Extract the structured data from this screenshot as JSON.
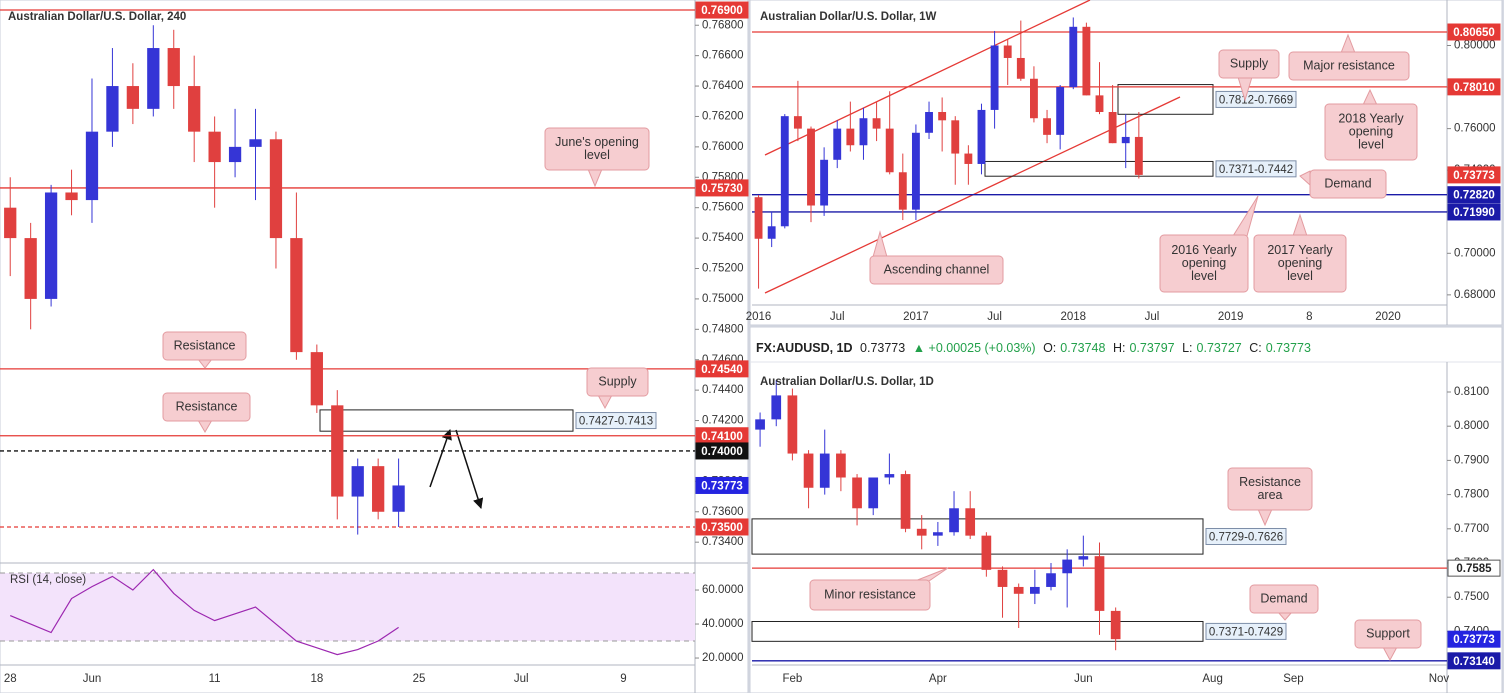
{
  "info_bar": {
    "symbol": "FX:AUDUSD, 1D",
    "last": "0.73773",
    "change": "▲ +0.00025 (+0.03%)",
    "fields": [
      {
        "key": "O:",
        "value": "0.73748"
      },
      {
        "key": "H:",
        "value": "0.73797"
      },
      {
        "key": "L:",
        "value": "0.73727"
      },
      {
        "key": "C:",
        "value": "0.73773"
      }
    ]
  },
  "chart_data": [
    {
      "type": "candlestick",
      "title": "Australian Dollar/U.S. Dollar, 240",
      "up_color": "#3535d6",
      "down_color": "#e0403f",
      "categories": [
        "28",
        null,
        null,
        null,
        "Jun",
        null,
        null,
        null,
        null,
        null,
        "11",
        null,
        null,
        null,
        null,
        "18",
        null,
        null,
        null,
        null,
        "25",
        null,
        null,
        null,
        null,
        "Jul",
        null,
        null,
        null,
        null,
        "9",
        null,
        null,
        null
      ],
      "open": [
        0.756,
        0.754,
        0.75,
        0.757,
        0.7565,
        0.761,
        0.764,
        0.7625,
        0.7665,
        0.764,
        0.761,
        0.759,
        0.76,
        0.7605,
        0.754,
        0.7465,
        0.743,
        0.737,
        0.739,
        0.736,
        null,
        null,
        null,
        null,
        null,
        null,
        null,
        null,
        null,
        null,
        null,
        null,
        null,
        null
      ],
      "high": [
        0.758,
        0.755,
        0.7575,
        0.7585,
        0.7645,
        0.7665,
        0.7655,
        0.768,
        0.7677,
        0.766,
        0.762,
        0.7625,
        0.7625,
        0.761,
        0.757,
        0.747,
        0.744,
        0.7395,
        0.7395,
        0.7395,
        null,
        null,
        null,
        null,
        null,
        null,
        null,
        null,
        null,
        null,
        null,
        null,
        null,
        null
      ],
      "low": [
        0.7515,
        0.748,
        0.7495,
        0.7555,
        0.755,
        0.76,
        0.7615,
        0.762,
        0.7625,
        0.759,
        0.756,
        0.758,
        0.7565,
        0.752,
        0.746,
        0.7425,
        0.7355,
        0.7345,
        0.7355,
        0.735,
        null,
        null,
        null,
        null,
        null,
        null,
        null,
        null,
        null,
        null,
        null,
        null,
        null,
        null
      ],
      "close": [
        0.754,
        0.75,
        0.757,
        0.7565,
        0.761,
        0.764,
        0.7625,
        0.7665,
        0.764,
        0.761,
        0.759,
        0.76,
        0.7605,
        0.754,
        0.7465,
        0.743,
        0.737,
        0.739,
        0.736,
        0.73773,
        null,
        null,
        null,
        null,
        null,
        null,
        null,
        null,
        null,
        null,
        null,
        null,
        null,
        null
      ],
      "ylim": [
        0.73263,
        0.76966
      ],
      "yticks": [
        {
          "value": 0.734,
          "label": "0.73400"
        },
        {
          "value": 0.736,
          "label": "0.73600"
        },
        {
          "value": 0.738,
          "label": "0.73800"
        },
        {
          "value": 0.74,
          "label": "0.74000"
        },
        {
          "value": 0.742,
          "label": "0.74200"
        },
        {
          "value": 0.744,
          "label": "0.74400"
        },
        {
          "value": 0.746,
          "label": "0.74600"
        },
        {
          "value": 0.748,
          "label": "0.74800"
        },
        {
          "value": 0.75,
          "label": "0.75000"
        },
        {
          "value": 0.752,
          "label": "0.75200"
        },
        {
          "value": 0.754,
          "label": "0.75400"
        },
        {
          "value": 0.756,
          "label": "0.75600"
        },
        {
          "value": 0.758,
          "label": "0.75800"
        },
        {
          "value": 0.76,
          "label": "0.76000"
        },
        {
          "value": 0.762,
          "label": "0.76200"
        },
        {
          "value": 0.764,
          "label": "0.76400"
        },
        {
          "value": 0.766,
          "label": "0.76600"
        },
        {
          "value": 0.768,
          "label": "0.76800"
        }
      ],
      "levels": [
        {
          "value": 0.769,
          "label": "0.76900",
          "color": "#e53935"
        },
        {
          "value": 0.7573,
          "label": "0.75730",
          "color": "#e53935"
        },
        {
          "value": 0.7454,
          "label": "0.74540",
          "color": "#e53935"
        },
        {
          "value": 0.741,
          "label": "0.74100",
          "color": "#e53935"
        },
        {
          "value": 0.74,
          "label": "0.74000",
          "color": "#111111",
          "dash": true
        },
        {
          "value": 0.735,
          "label": "0.73500",
          "color": "#e53935",
          "dash": true
        }
      ],
      "last_price": {
        "value": 0.73773,
        "label": "0.73773",
        "color": "#2424e0"
      },
      "zones": [
        {
          "high": 0.7427,
          "low": 0.7413,
          "label": "0.7427-0.7413"
        }
      ],
      "callouts": [
        [
          "June's opening",
          "level"
        ],
        [
          "Resistance"
        ],
        [
          "Resistance"
        ],
        [
          "Supply"
        ]
      ]
    },
    {
      "type": "candlestick",
      "title": "Australian Dollar/U.S. Dollar, 1W",
      "up_color": "#3535d6",
      "down_color": "#e0403f",
      "categories": [
        "2016",
        null,
        null,
        null,
        null,
        null,
        "Jul",
        null,
        null,
        null,
        null,
        null,
        "2017",
        null,
        null,
        null,
        null,
        null,
        "Jul",
        null,
        null,
        null,
        null,
        null,
        "2018",
        null,
        null,
        null,
        null,
        null,
        "Jul",
        null,
        null,
        null,
        null,
        null,
        "2019",
        null,
        null,
        null,
        null,
        null,
        "8",
        null,
        null,
        null,
        null,
        null,
        "2020",
        null,
        null,
        null,
        null
      ],
      "open": [
        0.727,
        0.707,
        0.713,
        0.766,
        0.76,
        0.723,
        0.745,
        0.76,
        0.752,
        0.765,
        0.76,
        0.739,
        0.721,
        0.758,
        0.768,
        0.764,
        0.748,
        0.743,
        0.769,
        0.8,
        0.794,
        0.784,
        0.765,
        0.757,
        0.78,
        0.809,
        0.776,
        0.768,
        0.753,
        0.756,
        null,
        null,
        null,
        null,
        null,
        null,
        null,
        null,
        null,
        null,
        null,
        null,
        null,
        null,
        null,
        null,
        null,
        null,
        null,
        null,
        null,
        null,
        null
      ],
      "high": [
        0.728,
        0.72,
        0.767,
        0.783,
        0.761,
        0.751,
        0.764,
        0.773,
        0.77,
        0.773,
        0.778,
        0.748,
        0.762,
        0.773,
        0.775,
        0.766,
        0.752,
        0.772,
        0.807,
        0.803,
        0.812,
        0.79,
        0.769,
        0.781,
        0.8135,
        0.811,
        0.792,
        0.781,
        0.767,
        0.768,
        null,
        null,
        null,
        null,
        null,
        null,
        null,
        null,
        null,
        null,
        null,
        null,
        null,
        null,
        null,
        null,
        null,
        null,
        null,
        null,
        null,
        null,
        null
      ],
      "low": [
        0.683,
        0.703,
        0.712,
        0.754,
        0.715,
        0.718,
        0.741,
        0.749,
        0.745,
        0.754,
        0.738,
        0.716,
        0.716,
        0.755,
        0.749,
        0.733,
        0.733,
        0.738,
        0.76,
        0.781,
        0.783,
        0.763,
        0.753,
        0.75,
        0.779,
        0.776,
        0.767,
        0.753,
        0.741,
        0.736,
        null,
        null,
        null,
        null,
        null,
        null,
        null,
        null,
        null,
        null,
        null,
        null,
        null,
        null,
        null,
        null,
        null,
        null,
        null,
        null,
        null,
        null,
        null
      ],
      "close": [
        0.707,
        0.713,
        0.766,
        0.76,
        0.723,
        0.745,
        0.76,
        0.752,
        0.765,
        0.76,
        0.739,
        0.721,
        0.758,
        0.768,
        0.764,
        0.748,
        0.743,
        0.769,
        0.8,
        0.794,
        0.784,
        0.765,
        0.757,
        0.78,
        0.809,
        0.776,
        0.768,
        0.753,
        0.756,
        0.73773,
        null,
        null,
        null,
        null,
        null,
        null,
        null,
        null,
        null,
        null,
        null,
        null,
        null,
        null,
        null,
        null,
        null,
        null,
        null,
        null,
        null,
        null,
        null
      ],
      "ylim": [
        0.67512,
        0.8219
      ],
      "yticks": [
        {
          "value": 0.68,
          "label": "0.68000"
        },
        {
          "value": 0.7,
          "label": "0.70000"
        },
        {
          "value": 0.72,
          "label": "0.72000"
        },
        {
          "value": 0.74,
          "label": "0.74000"
        },
        {
          "value": 0.76,
          "label": "0.76000"
        },
        {
          "value": 0.78,
          "label": "0.78000"
        },
        {
          "value": 0.8,
          "label": "0.80000"
        }
      ],
      "levels": [
        {
          "value": 0.8065,
          "label": "0.80650",
          "color": "#e53935"
        },
        {
          "value": 0.7801,
          "label": "0.78010",
          "color": "#e53935"
        },
        {
          "value": 0.7282,
          "label": "0.72820",
          "color": "#1a1aa8"
        },
        {
          "value": 0.7199,
          "label": "0.71990",
          "color": "#1a1aa8"
        }
      ],
      "last_price": {
        "value": 0.73773,
        "label": "0.73773",
        "color": "#e53935"
      },
      "zones": [
        {
          "high": 0.7812,
          "low": 0.7669,
          "label": "0.7812-0.7669"
        },
        {
          "low": 0.7371,
          "high": 0.7442,
          "label": "0.7371-0.7442"
        }
      ],
      "callouts": [
        [
          "Supply"
        ],
        [
          "Major resistance"
        ],
        [
          "2018 Yearly",
          "opening",
          "level"
        ],
        [
          "Demand"
        ],
        [
          "2016 Yearly",
          "opening",
          "level"
        ],
        [
          "2017 Yearly",
          "opening",
          "level"
        ],
        [
          "Ascending channel"
        ]
      ]
    },
    {
      "type": "candlestick",
      "title": "Australian Dollar/U.S. Dollar, 1D",
      "up_color": "#3535d6",
      "down_color": "#e0403f",
      "categories": [
        null,
        null,
        "Feb",
        null,
        null,
        null,
        null,
        null,
        null,
        null,
        null,
        "Apr",
        null,
        null,
        null,
        null,
        null,
        null,
        null,
        null,
        "Jun",
        null,
        null,
        null,
        null,
        null,
        null,
        null,
        "Aug",
        null,
        null,
        null,
        null,
        "Sep",
        null,
        null,
        null,
        null,
        null,
        null,
        null,
        null,
        "Nov"
      ],
      "open": [
        0.799,
        0.802,
        0.809,
        0.792,
        0.782,
        0.792,
        0.785,
        0.776,
        0.785,
        0.786,
        0.77,
        0.768,
        0.769,
        0.776,
        0.768,
        0.758,
        0.753,
        0.751,
        0.753,
        0.757,
        0.761,
        0.762,
        0.746,
        null,
        null,
        null,
        null,
        null,
        null,
        null,
        null,
        null,
        null,
        null,
        null,
        null,
        null,
        null,
        null,
        null,
        null,
        null,
        null
      ],
      "high": [
        0.804,
        0.8135,
        0.811,
        0.793,
        0.799,
        0.793,
        0.786,
        0.785,
        0.792,
        0.787,
        0.774,
        0.772,
        0.781,
        0.781,
        0.769,
        0.759,
        0.754,
        0.758,
        0.76,
        0.764,
        0.768,
        0.766,
        0.747,
        null,
        null,
        null,
        null,
        null,
        null,
        null,
        null,
        null,
        null,
        null,
        null,
        null,
        null,
        null,
        null,
        null,
        null,
        null,
        null
      ],
      "low": [
        0.794,
        0.8,
        0.79,
        0.776,
        0.78,
        0.781,
        0.771,
        0.774,
        0.783,
        0.769,
        0.764,
        0.765,
        0.768,
        0.767,
        0.756,
        0.744,
        0.741,
        0.748,
        0.752,
        0.747,
        0.759,
        0.739,
        0.7345,
        null,
        null,
        null,
        null,
        null,
        null,
        null,
        null,
        null,
        null,
        null,
        null,
        null,
        null,
        null,
        null,
        null,
        null,
        null,
        null
      ],
      "close": [
        0.802,
        0.809,
        0.792,
        0.782,
        0.792,
        0.785,
        0.776,
        0.785,
        0.786,
        0.77,
        0.768,
        0.769,
        0.776,
        0.768,
        0.758,
        0.753,
        0.751,
        0.753,
        0.757,
        0.761,
        0.762,
        0.746,
        0.73773,
        null,
        null,
        null,
        null,
        null,
        null,
        null,
        null,
        null,
        null,
        null,
        null,
        null,
        null,
        null,
        null,
        null,
        null,
        null,
        null
      ],
      "ylim": [
        0.73018,
        0.81789
      ],
      "yticks": [
        {
          "value": 0.74,
          "label": "0.7400"
        },
        {
          "value": 0.75,
          "label": "0.7500"
        },
        {
          "value": 0.76,
          "label": "0.7600"
        },
        {
          "value": 0.77,
          "label": "0.7700"
        },
        {
          "value": 0.78,
          "label": "0.7800"
        },
        {
          "value": 0.79,
          "label": "0.7900"
        },
        {
          "value": 0.8,
          "label": "0.8000"
        },
        {
          "value": 0.81,
          "label": "0.8100"
        }
      ],
      "levels": [
        {
          "value": 0.7585,
          "label": "0.7585",
          "color": "#e53935",
          "label_style": "outline"
        },
        {
          "value": 0.7314,
          "label": "0.73140",
          "color": "#1a1aa8"
        }
      ],
      "last_price": {
        "value": 0.73773,
        "label": "0.73773",
        "color": "#2424e0"
      },
      "zones": [
        {
          "high": 0.7729,
          "low": 0.7626,
          "label": "0.7729-0.7626"
        },
        {
          "low": 0.7371,
          "high": 0.7429,
          "label": "0.7371-0.7429"
        }
      ],
      "callouts": [
        [
          "Resistance",
          "area"
        ],
        [
          "Minor resistance"
        ],
        [
          "Demand"
        ],
        [
          "Support"
        ]
      ]
    },
    {
      "type": "line",
      "title": "RSI (14, close)",
      "color": "#9c27b0",
      "band": [
        30,
        70
      ],
      "band_color": "#f3e3fb",
      "values": [
        45,
        40,
        35,
        55,
        62,
        68,
        60,
        72,
        58,
        48,
        42,
        46,
        50,
        40,
        30,
        26,
        22,
        25,
        30,
        38,
        null,
        null,
        null,
        null,
        null,
        null,
        null,
        null,
        null,
        null,
        null,
        null,
        null,
        null
      ],
      "ylim": [
        15.9,
        75.9
      ],
      "yticks": [
        {
          "value": 60,
          "label": "60.0000"
        },
        {
          "value": 40,
          "label": "40.0000"
        },
        {
          "value": 20,
          "label": "20.0000"
        }
      ]
    }
  ]
}
